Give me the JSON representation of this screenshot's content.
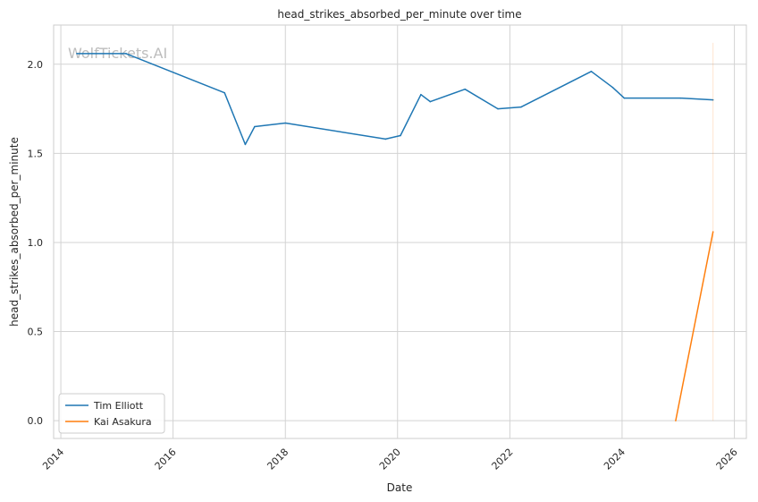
{
  "chart_data": {
    "type": "line",
    "title": "head_strikes_absorbed_per_minute over time",
    "xlabel": "Date",
    "ylabel": "head_strikes_absorbed_per_minute",
    "watermark": "WolfTickets.AI",
    "xlim": [
      "2013-11-15",
      "2026-03-20"
    ],
    "ylim": [
      -0.1,
      2.22
    ],
    "x_ticks": [
      "2014",
      "2016",
      "2018",
      "2020",
      "2022",
      "2024",
      "2026"
    ],
    "y_ticks": [
      "0.0",
      "0.5",
      "1.0",
      "1.5",
      "2.0"
    ],
    "grid": true,
    "legend_position": "lower-left",
    "series": [
      {
        "name": "Tim Elliott",
        "color": "#1f77b4",
        "points": [
          [
            "2014-04-15",
            2.06
          ],
          [
            "2015-03-01",
            2.06
          ],
          [
            "2016-12-01",
            1.84
          ],
          [
            "2017-04-15",
            1.55
          ],
          [
            "2017-06-15",
            1.65
          ],
          [
            "2018-01-01",
            1.67
          ],
          [
            "2019-10-15",
            1.58
          ],
          [
            "2020-01-20",
            1.6
          ],
          [
            "2020-06-01",
            1.83
          ],
          [
            "2020-08-01",
            1.79
          ],
          [
            "2021-03-15",
            1.86
          ],
          [
            "2021-10-15",
            1.75
          ],
          [
            "2022-03-15",
            1.76
          ],
          [
            "2023-06-15",
            1.96
          ],
          [
            "2023-11-01",
            1.87
          ],
          [
            "2024-01-15",
            1.81
          ],
          [
            "2025-01-15",
            1.81
          ],
          [
            "2025-08-15",
            1.8
          ]
        ]
      },
      {
        "name": "Kai Asakura",
        "color": "#ff7f0e",
        "points": [
          [
            "2024-12-15",
            0.0
          ],
          [
            "2025-08-15",
            1.06
          ]
        ]
      }
    ]
  }
}
